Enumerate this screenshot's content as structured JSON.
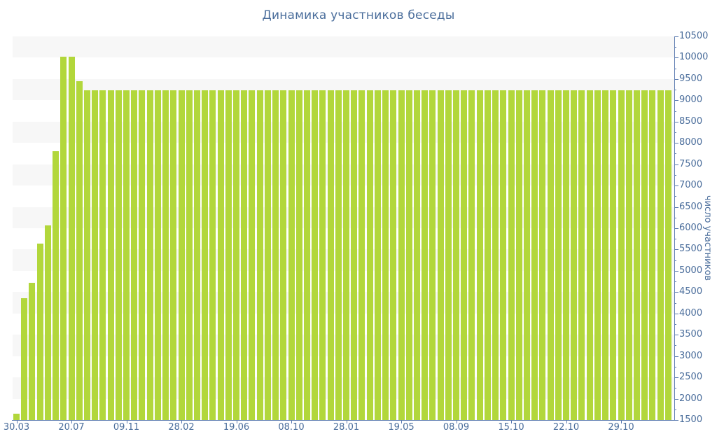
{
  "chart_data": {
    "type": "bar",
    "title": "Динамика участников беседы",
    "xlabel": "",
    "ylabel": "число участников",
    "ylim": [
      1500,
      10500
    ],
    "y_tick_step": 500,
    "y_minor_tick_step": 250,
    "grid": "alternating-horizontal-bands",
    "legend": "none",
    "bar_count": 84,
    "x_tick_labels": [
      "30.03",
      "20.07",
      "09.11",
      "28.02",
      "19.06",
      "08.10",
      "28.01",
      "19.05",
      "08.09",
      "15.10",
      "22.10",
      "29.10"
    ],
    "x_tick_bar_indices": [
      0,
      7,
      14,
      21,
      28,
      35,
      42,
      49,
      56,
      63,
      70,
      77
    ],
    "y_tick_labels": [
      "1500",
      "2000",
      "2500",
      "3000",
      "3500",
      "4000",
      "4500",
      "5000",
      "5500",
      "6000",
      "6500",
      "7000",
      "7500",
      "8000",
      "8500",
      "9000",
      "9500",
      "10000",
      "10500"
    ],
    "values": [
      1650,
      4360,
      4720,
      5640,
      6070,
      7800,
      10030,
      10030,
      9450,
      9230,
      9230,
      9230,
      9230,
      9230,
      9230,
      9230,
      9230,
      9230,
      9230,
      9230,
      9230,
      9230,
      9230,
      9230,
      9230,
      9230,
      9230,
      9230,
      9230,
      9230,
      9230,
      9230,
      9230,
      9230,
      9230,
      9230,
      9230,
      9230,
      9230,
      9230,
      9230,
      9230,
      9230,
      9230,
      9230,
      9230,
      9230,
      9230,
      9230,
      9230,
      9230,
      9230,
      9230,
      9230,
      9230,
      9230,
      9230,
      9230,
      9230,
      9230,
      9230,
      9230,
      9230,
      9230,
      9230,
      9230,
      9230,
      9230,
      9230,
      9230,
      9230,
      9230,
      9230,
      9230,
      9230,
      9230,
      9230,
      9230,
      9230,
      9230,
      9230,
      9230,
      9230,
      9230
    ]
  },
  "colors": {
    "bar": "#b2d73b",
    "band": "#f7f7f7",
    "background": "#ffffff",
    "text": "#4a6d9b",
    "axis": "#5b7ab0"
  }
}
